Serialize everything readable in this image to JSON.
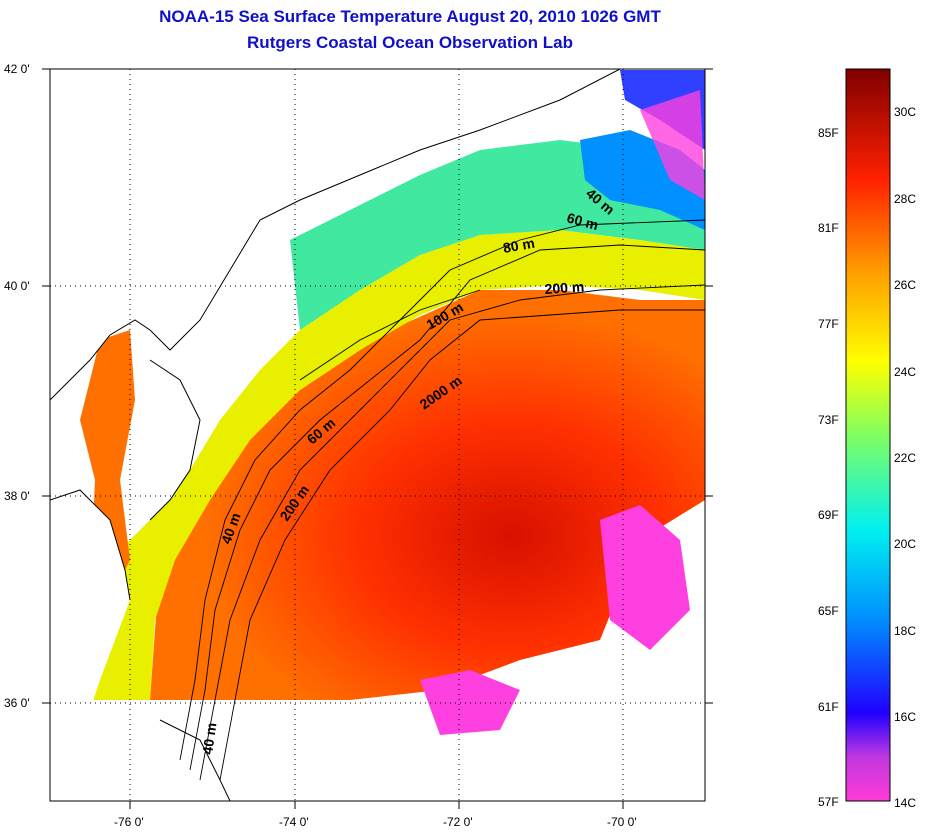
{
  "title": {
    "line1": "NOAA-15 Sea Surface Temperature August 20, 2010 1026 GMT",
    "line2": "Rutgers Coastal Ocean Observation Lab"
  },
  "axes": {
    "y_labels": [
      "42 0'",
      "40 0'",
      "38 0'",
      "36 0'"
    ],
    "x_labels": [
      "-76 0'",
      "-74 0'",
      "-72 0'",
      "-70 0'"
    ]
  },
  "contours": {
    "labels": [
      "40 m",
      "60 m",
      "80 m",
      "200 m",
      "100 m",
      "2000 m",
      "60 m",
      "200 m",
      "40 m",
      "40 m"
    ]
  },
  "colorbar": {
    "fahrenheit": [
      "85F",
      "81F",
      "77F",
      "73F",
      "69F",
      "65F",
      "61F",
      "57F"
    ],
    "celsius": [
      "30C",
      "28C",
      "26C",
      "24C",
      "22C",
      "20C",
      "18C",
      "16C",
      "14C"
    ]
  },
  "colors": {
    "title": "#1010c8",
    "warm": "#ff3a00",
    "land": "#ffffff",
    "cool": "#00e0f0",
    "cold": "#0030ff",
    "coldest": "#ff00ff"
  }
}
